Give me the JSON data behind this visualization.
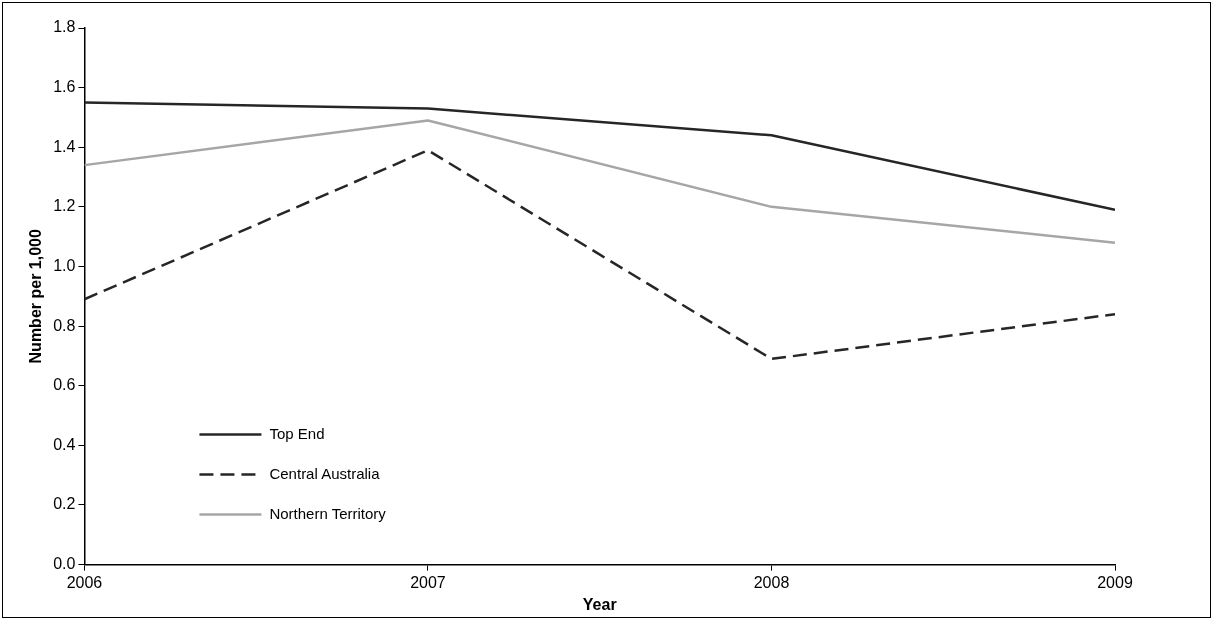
{
  "chart_data": {
    "type": "line",
    "xlabel": "Year",
    "ylabel": "Number per 1,000",
    "x": [
      2006,
      2007,
      2008,
      2009
    ],
    "xlim": [
      2006,
      2009
    ],
    "xticks": [
      2006,
      2007,
      2008,
      2009
    ],
    "ylim": [
      0,
      1.8
    ],
    "yticks": [
      {
        "value": 0,
        "label": "0.0"
      },
      {
        "value": 0.2,
        "label": "0.2"
      },
      {
        "value": 0.4,
        "label": "0.4"
      },
      {
        "value": 0.6,
        "label": "0.6"
      },
      {
        "value": 0.8,
        "label": "0.8"
      },
      {
        "value": 1,
        "label": "1.0"
      },
      {
        "value": 1.2,
        "label": "1.2"
      },
      {
        "value": 1.4,
        "label": "1.4"
      },
      {
        "value": 1.6,
        "label": "1.6"
      },
      {
        "value": 1.8,
        "label": "1.8"
      }
    ],
    "grid": false,
    "legend": "bottom left",
    "marker": "none",
    "series": [
      {
        "name": "Top End",
        "color": "#262626",
        "line_style": "solid",
        "values": [
          1.55,
          1.53,
          1.44,
          1.19
        ]
      },
      {
        "name": "Central Australia",
        "color": "#262626",
        "line_style": "dashed",
        "values": [
          0.89,
          1.39,
          0.69,
          0.84
        ]
      },
      {
        "name": "Northern Territory",
        "color": "#a6a6a6",
        "line_style": "solid",
        "values": [
          1.34,
          1.49,
          1.2,
          1.08
        ]
      }
    ]
  }
}
